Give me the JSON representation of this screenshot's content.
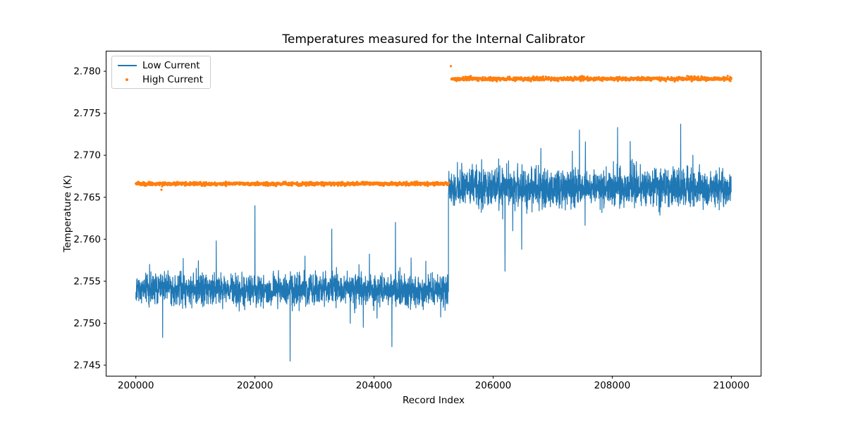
{
  "chart_data": {
    "type": "line",
    "title": "Temperatures measured for the Internal Calibrator",
    "xlabel": "Record Index",
    "ylabel": "Temperature (K)",
    "xlim": [
      199500,
      210500
    ],
    "ylim": [
      2.7437,
      2.7824
    ],
    "xticks": [
      200000,
      202000,
      204000,
      206000,
      208000,
      210000
    ],
    "yticks": [
      2.745,
      2.75,
      2.755,
      2.76,
      2.765,
      2.77,
      2.775,
      2.78
    ],
    "background_color": "#ffffff",
    "axis_color": "#000000",
    "series": [
      {
        "name": "Low Current",
        "color": "#1f77b4",
        "style": "line",
        "segments": [
          {
            "x_start": 200000,
            "x_end": 205250,
            "mean": 2.754,
            "noise_std": 0.0009
          },
          {
            "x_start": 205250,
            "x_end": 210000,
            "mean": 2.7661,
            "noise_std": 0.0011
          }
        ],
        "spikes": [
          {
            "x": 200450,
            "y": 2.7483
          },
          {
            "x": 201350,
            "y": 2.7598
          },
          {
            "x": 202000,
            "y": 2.764
          },
          {
            "x": 202590,
            "y": 2.7455
          },
          {
            "x": 202840,
            "y": 2.758
          },
          {
            "x": 203290,
            "y": 2.7612
          },
          {
            "x": 203600,
            "y": 2.75
          },
          {
            "x": 204050,
            "y": 2.7506
          },
          {
            "x": 204300,
            "y": 2.7472
          },
          {
            "x": 204360,
            "y": 2.762
          },
          {
            "x": 206200,
            "y": 2.7562
          },
          {
            "x": 206330,
            "y": 2.761
          },
          {
            "x": 206480,
            "y": 2.7588
          },
          {
            "x": 207330,
            "y": 2.7705
          },
          {
            "x": 207450,
            "y": 2.773
          },
          {
            "x": 207550,
            "y": 2.7716
          },
          {
            "x": 208090,
            "y": 2.7733
          },
          {
            "x": 209150,
            "y": 2.7737
          }
        ]
      },
      {
        "name": "High Current",
        "color": "#ff7f0e",
        "style": "dots",
        "segments": [
          {
            "x_start": 200000,
            "x_end": 205260,
            "mean": 2.7666,
            "noise_std": 0.0001
          },
          {
            "x_start": 205300,
            "x_end": 210000,
            "mean": 2.7791,
            "noise_std": 0.00011
          }
        ],
        "outliers": [
          {
            "x": 200430,
            "y": 2.7659
          },
          {
            "x": 205290,
            "y": 2.7806
          }
        ]
      }
    ],
    "legend": {
      "position": "upper left",
      "entries": [
        {
          "label": "Low Current",
          "marker": "line",
          "color": "#1f77b4"
        },
        {
          "label": "High Current",
          "marker": "dot",
          "color": "#ff7f0e"
        }
      ]
    }
  }
}
